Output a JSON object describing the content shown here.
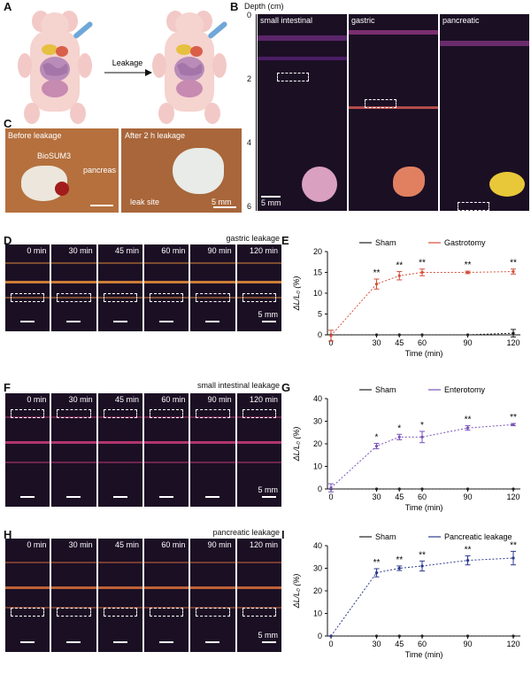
{
  "panels": {
    "A": "A",
    "B": "B",
    "C": "C",
    "D": "D",
    "E": "E",
    "F": "F",
    "G": "G",
    "H": "H",
    "I": "I"
  },
  "panel_a": {
    "arrow_label": "Leakage"
  },
  "panel_b": {
    "axis_title": "Depth (cm)",
    "depth_ticks": [
      "0",
      "2",
      "4",
      "6"
    ],
    "images": [
      "small intestinal",
      "gastric",
      "pancreatic"
    ],
    "scale_bar": "5 mm"
  },
  "panel_c": {
    "left_title": "Before leakage",
    "right_title": "After 2 h leakage",
    "labels": [
      "BioSUM3",
      "pancreas",
      "leak site"
    ],
    "scale_bar": "5 mm"
  },
  "time_labels": [
    "0 min",
    "30 min",
    "45 min",
    "60 min",
    "90 min",
    "120 min"
  ],
  "panel_d": {
    "title": "gastric leakage",
    "scale_bar": "5 mm"
  },
  "panel_f": {
    "title": "small intestinal leakage",
    "scale_bar": "5 mm"
  },
  "panel_h": {
    "title": "pancreatic leakage",
    "scale_bar": "5 mm"
  },
  "colors": {
    "sham": "#222222",
    "gastric": "#d2503a",
    "intestinal": "#7a52b8",
    "pancreatic": "#2d3a8c",
    "us_bg": "#1b0f24"
  },
  "chart_data": [
    {
      "panel": "E",
      "type": "line",
      "xlabel": "Time (min)",
      "ylabel": "ΔL/L₀ (%)",
      "x": [
        0,
        30,
        45,
        60,
        90,
        120
      ],
      "xlim": [
        0,
        120
      ],
      "ylim": [
        0,
        20
      ],
      "yticks": [
        0,
        5,
        10,
        15,
        20
      ],
      "series": [
        {
          "name": "Sham",
          "values": [
            0,
            0,
            0,
            0,
            0,
            0.4
          ],
          "err": [
            0,
            0,
            0,
            0,
            0,
            0.9
          ]
        },
        {
          "name": "Gastrotomy",
          "values": [
            -0.2,
            12.2,
            14.2,
            15.0,
            15.0,
            15.2
          ],
          "err": [
            1.3,
            1.2,
            1.0,
            0.8,
            0.3,
            0.6
          ]
        }
      ],
      "significance": [
        "",
        "**",
        "**",
        "**",
        "**",
        "**"
      ]
    },
    {
      "panel": "G",
      "type": "line",
      "xlabel": "Time (min)",
      "ylabel": "ΔL/L₀ (%)",
      "x": [
        0,
        30,
        45,
        60,
        90,
        120
      ],
      "xlim": [
        0,
        120
      ],
      "ylim": [
        0,
        40
      ],
      "yticks": [
        0,
        10,
        20,
        30,
        40
      ],
      "series": [
        {
          "name": "Sham",
          "values": [
            0,
            0,
            0,
            0,
            0,
            0
          ],
          "err": [
            0,
            0,
            0,
            0,
            0,
            0
          ]
        },
        {
          "name": "Enterotomy",
          "values": [
            0.5,
            19.0,
            23.0,
            23.0,
            27.0,
            28.5
          ],
          "err": [
            1.8,
            1.2,
            1.2,
            2.5,
            1.0,
            0.5
          ]
        }
      ],
      "significance": [
        "",
        "*",
        "*",
        "*",
        "**",
        "**"
      ]
    },
    {
      "panel": "I",
      "type": "line",
      "xlabel": "Time (min)",
      "ylabel": "ΔL/L₀ (%)",
      "x": [
        0,
        30,
        45,
        60,
        90,
        120
      ],
      "xlim": [
        0,
        120
      ],
      "ylim": [
        0,
        40
      ],
      "yticks": [
        0,
        10,
        20,
        30,
        40
      ],
      "series": [
        {
          "name": "Sham",
          "values": [
            0,
            0,
            0,
            0,
            0,
            0
          ],
          "err": [
            0,
            0,
            0,
            0,
            0,
            0
          ]
        },
        {
          "name": "Pancreatic leakage",
          "values": [
            0,
            28.0,
            30.0,
            31.0,
            33.5,
            34.5
          ],
          "err": [
            0,
            1.8,
            1.0,
            2.2,
            2.0,
            3.0
          ]
        }
      ],
      "significance": [
        "",
        "**",
        "**",
        "**",
        "**",
        "**"
      ]
    }
  ]
}
